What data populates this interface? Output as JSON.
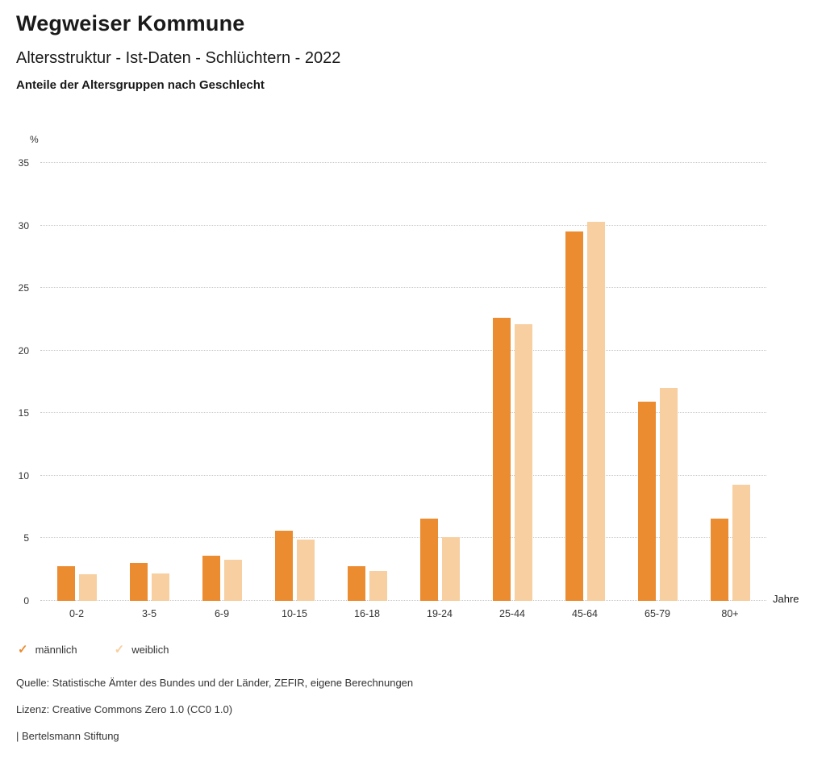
{
  "header": {
    "title": "Wegweiser Kommune",
    "subtitle": "Altersstruktur - Ist-Daten - Schlüchtern - 2022"
  },
  "chart_data": {
    "type": "bar",
    "title": "Anteile der Altersgruppen nach Geschlecht",
    "categories": [
      "0-2",
      "3-5",
      "6-9",
      "10-15",
      "16-18",
      "19-24",
      "25-44",
      "45-64",
      "65-79",
      "80+"
    ],
    "series": [
      {
        "name": "männlich",
        "color": "#EB8C30",
        "values": [
          2.8,
          3.0,
          3.6,
          5.6,
          2.8,
          6.6,
          22.6,
          29.5,
          15.9,
          6.6
        ]
      },
      {
        "name": "weiblich",
        "color": "#F7CFA0",
        "values": [
          2.1,
          2.2,
          3.3,
          4.9,
          2.4,
          5.1,
          22.1,
          30.3,
          17.0,
          9.3
        ]
      }
    ],
    "ylabel": "%",
    "xlabel": "Jahre",
    "ylim": [
      0,
      35
    ],
    "yticks": [
      0,
      5,
      10,
      15,
      20,
      25,
      30,
      35
    ],
    "grid": true,
    "legend_position": "bottom"
  },
  "legend": {
    "check_glyph": "✓",
    "items": [
      {
        "label": "männlich",
        "color": "#EB8C30"
      },
      {
        "label": "weiblich",
        "color": "#F7CFA0"
      }
    ]
  },
  "footer": {
    "source": "Quelle: Statistische Ämter des Bundes und der Länder, ZEFIR, eigene Berechnungen",
    "license": "Lizenz: Creative Commons Zero 1.0 (CC0 1.0)",
    "brand": "| Bertelsmann Stiftung"
  }
}
